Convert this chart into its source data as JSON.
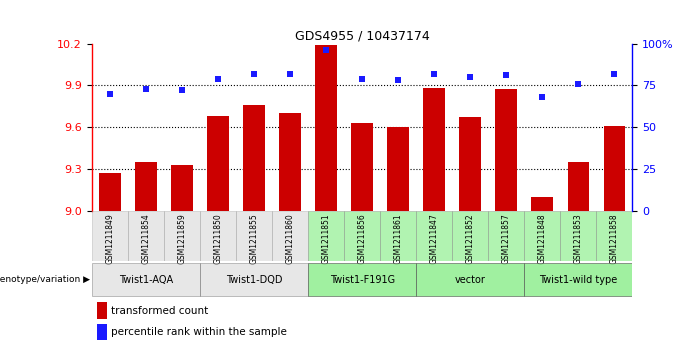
{
  "title": "GDS4955 / 10437174",
  "samples": [
    "GSM1211849",
    "GSM1211854",
    "GSM1211859",
    "GSM1211850",
    "GSM1211855",
    "GSM1211860",
    "GSM1211851",
    "GSM1211856",
    "GSM1211861",
    "GSM1211847",
    "GSM1211852",
    "GSM1211857",
    "GSM1211848",
    "GSM1211853",
    "GSM1211858"
  ],
  "bar_values": [
    9.27,
    9.35,
    9.33,
    9.68,
    9.76,
    9.7,
    10.19,
    9.63,
    9.6,
    9.88,
    9.67,
    9.87,
    9.1,
    9.35,
    9.61
  ],
  "dot_values": [
    70,
    73,
    72,
    79,
    82,
    82,
    96,
    79,
    78,
    82,
    80,
    81,
    68,
    76,
    82
  ],
  "groups": [
    {
      "label": "Twist1-AQA",
      "start": 0,
      "end": 3,
      "color": "#d0d0d0"
    },
    {
      "label": "Twist1-DQD",
      "start": 3,
      "end": 6,
      "color": "#d0d0d0"
    },
    {
      "label": "Twist1-F191G",
      "start": 6,
      "end": 9,
      "color": "#90ee90"
    },
    {
      "label": "vector",
      "start": 9,
      "end": 12,
      "color": "#90ee90"
    },
    {
      "label": "Twist1-wild type",
      "start": 12,
      "end": 15,
      "color": "#90ee90"
    }
  ],
  "ylim_left": [
    9.0,
    10.2
  ],
  "ylim_right": [
    0,
    100
  ],
  "yticks_left": [
    9.0,
    9.3,
    9.6,
    9.9,
    10.2
  ],
  "yticks_right": [
    0,
    25,
    50,
    75,
    100
  ],
  "ytick_labels_right": [
    "0",
    "25",
    "50",
    "75",
    "100%"
  ],
  "bar_color": "#cc0000",
  "dot_color": "#1a1aff",
  "grid_values": [
    9.3,
    9.6,
    9.9
  ],
  "legend_bar_label": "transformed count",
  "legend_dot_label": "percentile rank within the sample",
  "genotype_label": "genotype/variation"
}
